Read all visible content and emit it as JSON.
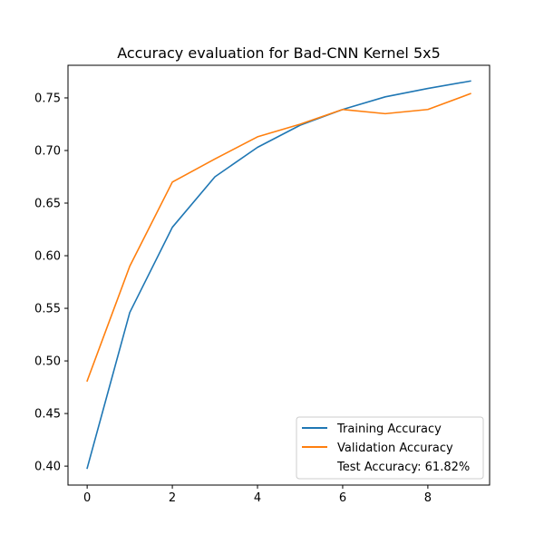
{
  "chart_data": {
    "type": "line",
    "title": "Accuracy evaluation for Bad-CNN Kernel 5x5",
    "xlabel": "",
    "ylabel": "",
    "x": [
      0,
      1,
      2,
      3,
      4,
      5,
      6,
      7,
      8,
      9
    ],
    "xlim": [
      -0.45,
      9.45
    ],
    "ylim": [
      0.382,
      0.781
    ],
    "xticks": [
      0,
      2,
      4,
      6,
      8
    ],
    "xtick_labels": [
      "0",
      "2",
      "4",
      "6",
      "8"
    ],
    "yticks": [
      0.4,
      0.45,
      0.5,
      0.55,
      0.6,
      0.65,
      0.7,
      0.75
    ],
    "ytick_labels": [
      "0.40",
      "0.45",
      "0.50",
      "0.55",
      "0.60",
      "0.65",
      "0.70",
      "0.75"
    ],
    "grid": false,
    "legend_position": "bottom-right",
    "series": [
      {
        "name": "Training Accuracy",
        "color": "#1f77b4",
        "values": [
          0.398,
          0.546,
          0.627,
          0.675,
          0.703,
          0.724,
          0.739,
          0.751,
          0.759,
          0.766
        ]
      },
      {
        "name": "Validation Accuracy",
        "color": "#ff7f0e",
        "values": [
          0.481,
          0.59,
          0.67,
          0.692,
          0.713,
          0.725,
          0.739,
          0.735,
          0.739,
          0.754
        ]
      }
    ],
    "legend_extra": "Test Accuracy: 61.82%"
  }
}
